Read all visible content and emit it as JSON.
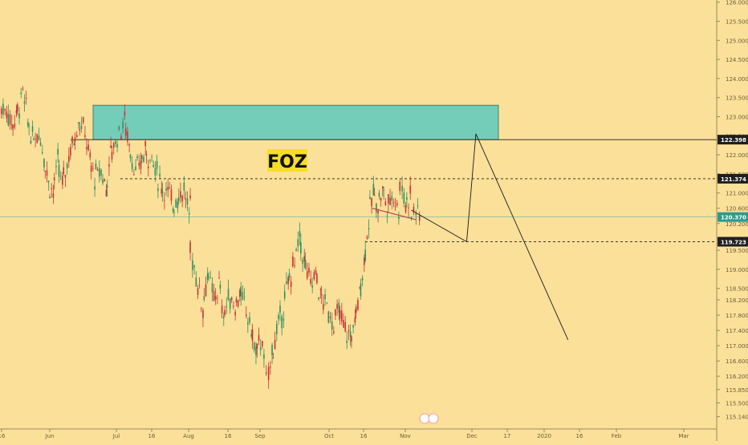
{
  "chart_data": {
    "type": "candlestick",
    "title": "FOZ",
    "x_ticks": [
      "16",
      "Jun",
      "Jul",
      "16",
      "Aug",
      "16",
      "Sep",
      "Oct",
      "16",
      "Nov",
      "Dec",
      "17",
      "2020",
      "16",
      "Feb",
      "Mar"
    ],
    "y_ticks": [
      "126.000",
      "125.500",
      "125.000",
      "124.500",
      "124.000",
      "123.500",
      "123.000",
      "122.500",
      "122.000",
      "121.500",
      "121.000",
      "120.600",
      "120.200",
      "119.800",
      "119.500",
      "119.000",
      "118.500",
      "118.200",
      "117.800",
      "117.400",
      "117.000",
      "116.600",
      "116.200",
      "115.850",
      "115.500",
      "115.140"
    ],
    "ylim": [
      115.0,
      126.0
    ],
    "price_levels": [
      {
        "label": "122.398",
        "value": 122.398,
        "style": "solid"
      },
      {
        "label": "121.374",
        "value": 121.374,
        "style": "dashed"
      },
      {
        "label": "120.370",
        "value": 120.37,
        "style": "current"
      },
      {
        "label": "119.723",
        "value": 119.723,
        "style": "dashed"
      }
    ],
    "supply_zone": {
      "from_date": "Jun 1",
      "to_date": "Dec 13",
      "low": 122.398,
      "high": 123.3,
      "color": "#74cdb9"
    },
    "closes": [
      [
        "May 10",
        123.2
      ],
      [
        "May 13",
        122.8
      ],
      [
        "May 15",
        123.0
      ],
      [
        "May 17",
        123.6
      ],
      [
        "May 20",
        122.9
      ],
      [
        "May 22",
        122.4
      ],
      [
        "May 24",
        122.6
      ],
      [
        "May 27",
        122.0
      ],
      [
        "May 29",
        121.3
      ],
      [
        "May 31",
        121.0
      ],
      [
        "Jun 3",
        121.8
      ],
      [
        "Jun 5",
        121.2
      ],
      [
        "Jun 7",
        122.0
      ],
      [
        "Jun 10",
        122.4
      ],
      [
        "Jun 12",
        122.9
      ],
      [
        "Jun 14",
        122.6
      ],
      [
        "Jun 17",
        121.8
      ],
      [
        "Jun 19",
        121.4
      ],
      [
        "Jun 21",
        121.6
      ],
      [
        "Jun 24",
        121.1
      ],
      [
        "Jun 26",
        122.0
      ],
      [
        "Jun 28",
        122.6
      ],
      [
        "Jul 1",
        122.9
      ],
      [
        "Jul 3",
        122.3
      ],
      [
        "Jul 5",
        121.5
      ],
      [
        "Jul 8",
        121.8
      ],
      [
        "Jul 10",
        122.1
      ],
      [
        "Jul 12",
        121.9
      ],
      [
        "Jul 15",
        121.5
      ],
      [
        "Jul 17",
        121.2
      ],
      [
        "Jul 19",
        121.0
      ],
      [
        "Jul 22",
        120.7
      ],
      [
        "Jul 24",
        120.9
      ],
      [
        "Jul 26",
        121.1
      ],
      [
        "Jul 29",
        120.4
      ],
      [
        "Jul 31",
        120.8
      ],
      [
        "Aug 1",
        119.5
      ],
      [
        "Aug 2",
        118.6
      ],
      [
        "Aug 5",
        118.0
      ],
      [
        "Aug 7",
        118.9
      ],
      [
        "Aug 9",
        118.2
      ],
      [
        "Aug 12",
        118.6
      ],
      [
        "Aug 14",
        117.8
      ],
      [
        "Aug 16",
        118.3
      ],
      [
        "Aug 19",
        118.0
      ],
      [
        "Aug 21",
        118.4
      ],
      [
        "Aug 23",
        117.9
      ],
      [
        "Aug 26",
        117.4
      ],
      [
        "Aug 28",
        116.8
      ],
      [
        "Aug 30",
        117.2
      ],
      [
        "Sep 2",
        116.5
      ],
      [
        "Sep 3",
        116.0
      ],
      [
        "Sep 4",
        116.8
      ],
      [
        "Sep 6",
        117.5
      ],
      [
        "Sep 9",
        118.0
      ],
      [
        "Sep 11",
        118.6
      ],
      [
        "Sep 13",
        119.2
      ],
      [
        "Sep 16",
        119.8
      ],
      [
        "Sep 18",
        119.2
      ],
      [
        "Sep 20",
        118.6
      ],
      [
        "Sep 23",
        118.9
      ],
      [
        "Sep 25",
        118.3
      ],
      [
        "Sep 27",
        118.0
      ],
      [
        "Sep 30",
        117.6
      ],
      [
        "Oct 2",
        117.9
      ],
      [
        "Oct 4",
        117.4
      ],
      [
        "Oct 7",
        117.2
      ],
      [
        "Oct 9",
        117.6
      ],
      [
        "Oct 11",
        118.4
      ],
      [
        "Oct 13",
        119.2
      ],
      [
        "Oct 15",
        120.3
      ],
      [
        "Oct 17",
        121.0
      ],
      [
        "Oct 19",
        120.7
      ],
      [
        "Oct 21",
        121.1
      ],
      [
        "Oct 23",
        120.6
      ],
      [
        "Oct 25",
        121.0
      ],
      [
        "Oct 28",
        120.5
      ],
      [
        "Oct 30",
        121.3
      ],
      [
        "Nov 1",
        120.7
      ],
      [
        "Nov 3",
        121.0
      ],
      [
        "Nov 5",
        120.4
      ],
      [
        "Nov 6",
        120.6
      ],
      [
        "Nov 7",
        120.37
      ]
    ],
    "projection": [
      [
        "Nov 5",
        120.55
      ],
      [
        "Nov 29",
        119.723
      ],
      [
        "Dec 2",
        122.55
      ],
      [
        "Jan 12",
        117.15
      ]
    ],
    "annotation_line": [
      [
        "Oct 18",
        120.6
      ],
      [
        "Nov 7",
        120.3
      ]
    ]
  }
}
